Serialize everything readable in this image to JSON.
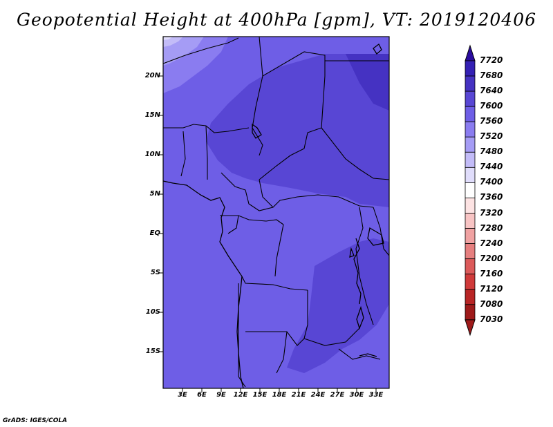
{
  "title": "Geopotential Height at 400hPa [gpm], VT: 2019120406",
  "credit": "GrADS: IGES/COLA",
  "map": {
    "lat_labels": [
      "20N",
      "15N",
      "10N",
      "5N",
      "EQ",
      "5S",
      "10S",
      "15S"
    ],
    "lon_labels": [
      "3E",
      "6E",
      "9E",
      "12E",
      "15E",
      "18E",
      "21E",
      "24E",
      "27E",
      "30E",
      "33E"
    ],
    "dominant_fill_color": "#6e5ee6"
  },
  "colorbar": {
    "levels": [
      "7720",
      "7680",
      "7640",
      "7600",
      "7560",
      "7520",
      "7480",
      "7440",
      "7400",
      "7360",
      "7320",
      "7280",
      "7240",
      "7200",
      "7160",
      "7120",
      "7080",
      "7030"
    ],
    "colors": [
      "#2a0c9e",
      "#3420b4",
      "#4532c2",
      "#5846d4",
      "#6e5ee6",
      "#8a7cf0",
      "#a59cf5",
      "#c3bcf8",
      "#e0ddfb",
      "#ffffff",
      "#fde3e3",
      "#f8c4c4",
      "#f0a2a2",
      "#e67f7f",
      "#dc5a5a",
      "#d03a3a",
      "#b82525",
      "#9e1a1a"
    ],
    "upper_arrow_color": "#2a0c9e",
    "lower_arrow_color": "#9e1a1a"
  }
}
